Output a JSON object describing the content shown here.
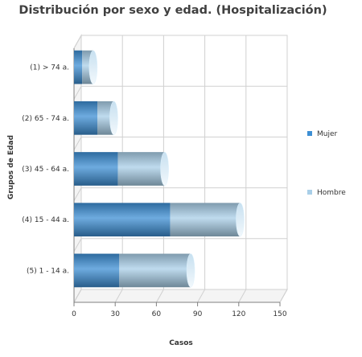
{
  "chart_data": {
    "type": "bar",
    "orientation": "horizontal",
    "stacked": true,
    "title": "Distribución por sexo y edad. (Hospitalización)",
    "xlabel": "Casos",
    "ylabel": "Grupos de Edad",
    "categories": [
      "(1) > 74 a.",
      "(2) 65 - 74 a.",
      "(3) 45 - 64 a.",
      "(4) 15 - 44 a.",
      "(5) 1 - 14 a."
    ],
    "series": [
      {
        "name": "Mujer",
        "values": [
          6,
          17,
          32,
          70,
          33
        ],
        "color": "#3d8fd4"
      },
      {
        "name": "Hombre",
        "values": [
          8,
          12,
          34,
          51,
          52
        ],
        "color": "#a9cfe8"
      }
    ],
    "xlim": [
      0,
      150
    ],
    "xticks": [
      0,
      30,
      60,
      90,
      120,
      150
    ],
    "grid": true,
    "legend_position": "right"
  }
}
